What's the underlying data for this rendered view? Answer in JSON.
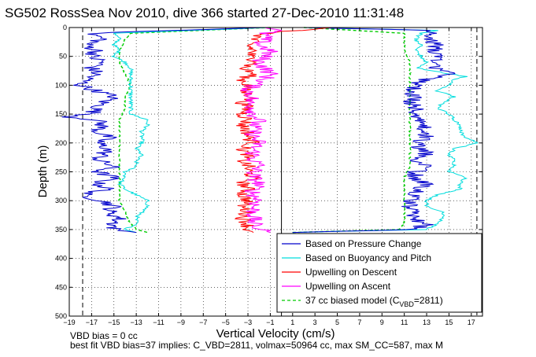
{
  "chart_data": {
    "type": "line",
    "title": "SG502 RossSea Nov 2010, dive 366 started 27-Dec-2010 11:31:48",
    "xlabel": "Vertical Velocity (cm/s)",
    "ylabel": "Depth (m)",
    "xlim": [
      -19,
      18
    ],
    "ylim": [
      0,
      500
    ],
    "y_reversed": true,
    "grid": true,
    "xticks": [
      -19,
      -17,
      -15,
      -13,
      -11,
      -9,
      -7,
      -5,
      -3,
      -1,
      1,
      3,
      5,
      7,
      9,
      11,
      13,
      15,
      17
    ],
    "yticks": [
      0,
      50,
      100,
      150,
      200,
      250,
      300,
      350,
      400,
      450,
      500
    ],
    "vertical_lines": [
      {
        "x": -17.8,
        "style": "dashed",
        "color": "#000000"
      },
      {
        "x": 17.5,
        "style": "dashed",
        "color": "#000000"
      },
      {
        "x": 0,
        "style": "solid",
        "color": "#000000"
      }
    ],
    "legend_position": "lower-right",
    "series": [
      {
        "name": "Based on Pressure Change",
        "color": "#0000cc",
        "style": "solid",
        "descent": {
          "depth": [
            0,
            10,
            20,
            30,
            40,
            50,
            60,
            70,
            80,
            90,
            100,
            110,
            120,
            130,
            140,
            150,
            155,
            160,
            170,
            180,
            190,
            200,
            210,
            220,
            230,
            240,
            250,
            260,
            270,
            280,
            290,
            300,
            310,
            320,
            330,
            340,
            350,
            355
          ],
          "velocity": [
            -1.5,
            -17,
            -16,
            -17.5,
            -16.5,
            -17,
            -16,
            -17,
            -16.5,
            -17.5,
            -18,
            -16.5,
            -15,
            -16,
            -16.5,
            -17,
            -19,
            -16.5,
            -16,
            -16.5,
            -15.5,
            -16.5,
            -15.5,
            -16,
            -16.5,
            -15,
            -16.5,
            -15,
            -16.5,
            -15.5,
            -18,
            -16,
            -15,
            -15.5,
            -14.5,
            -15,
            -15,
            -13
          ]
        },
        "ascent": {
          "depth": [
            355,
            350,
            340,
            330,
            320,
            310,
            300,
            290,
            280,
            270,
            260,
            250,
            240,
            230,
            220,
            210,
            200,
            190,
            180,
            170,
            160,
            150,
            140,
            130,
            120,
            110,
            100,
            90,
            80,
            70,
            60,
            50,
            40,
            30,
            20,
            10,
            5,
            0
          ],
          "velocity": [
            1,
            12,
            13,
            11.5,
            12,
            11.5,
            11.5,
            12,
            12.5,
            13,
            12,
            12,
            13.5,
            12,
            13,
            12.5,
            12,
            13,
            12,
            13,
            12.5,
            12,
            12,
            11.5,
            12,
            11.5,
            12,
            13,
            15,
            14,
            13.5,
            14,
            13.5,
            14,
            13,
            14,
            13,
            2
          ]
        }
      },
      {
        "name": "Based on Buoyancy and Pitch",
        "color": "#00dddd",
        "style": "solid",
        "descent": {
          "depth": [
            0,
            10,
            20,
            30,
            40,
            50,
            60,
            70,
            80,
            90,
            100,
            110,
            120,
            130,
            140,
            150,
            160,
            170,
            180,
            190,
            200,
            210,
            220,
            230,
            240,
            250,
            260,
            270,
            280,
            290,
            300,
            310,
            320,
            330,
            340,
            350,
            355
          ],
          "velocity": [
            -1,
            -15,
            -14.5,
            -15,
            -14.5,
            -15,
            -14,
            -13.5,
            -13.5,
            -13.5,
            -13.5,
            -13.5,
            -13.5,
            -13.5,
            -13.5,
            -13.5,
            -12,
            -12,
            -12.5,
            -12.5,
            -12.5,
            -13,
            -12.5,
            -13,
            -13,
            -14,
            -14,
            -14.5,
            -14,
            -13,
            -12,
            -12,
            -12.5,
            -13,
            -13,
            -14,
            -13
          ]
        },
        "ascent": {
          "depth": [
            355,
            350,
            340,
            330,
            320,
            310,
            300,
            290,
            280,
            270,
            260,
            250,
            240,
            230,
            220,
            210,
            200,
            190,
            180,
            170,
            160,
            150,
            140,
            130,
            120,
            110,
            100,
            90,
            85,
            80,
            70,
            60,
            50,
            40,
            30,
            20,
            10,
            5,
            0
          ],
          "velocity": [
            1,
            13,
            14,
            14.5,
            14.5,
            13,
            13,
            14,
            16,
            16,
            16.5,
            15,
            15.5,
            15.5,
            15,
            15.5,
            17.5,
            16.5,
            16,
            16,
            15.5,
            15,
            14,
            14.5,
            15.5,
            14,
            15,
            15.5,
            16.5,
            15,
            12,
            13,
            12.5,
            12,
            12.5,
            12,
            12.5,
            14,
            2
          ]
        }
      },
      {
        "name": "Upwelling on Descent",
        "color": "#ff0000",
        "style": "solid",
        "depth": [
          0,
          5,
          10,
          20,
          30,
          40,
          50,
          60,
          70,
          80,
          90,
          100,
          110,
          120,
          130,
          140,
          150,
          160,
          170,
          180,
          190,
          200,
          210,
          220,
          230,
          240,
          250,
          260,
          270,
          280,
          290,
          300,
          310,
          320,
          330,
          340,
          350,
          355
        ],
        "velocity": [
          4.5,
          1.5,
          -1.5,
          -2.5,
          -3,
          -2.5,
          -3,
          -2,
          -3.5,
          -2.5,
          -3.5,
          -3,
          -3.5,
          -2.5,
          -3.5,
          -3,
          -3.5,
          -3,
          -3.5,
          -3,
          -3,
          -2.5,
          -3.5,
          -3,
          -3.5,
          -3,
          -3,
          -2.5,
          -3.5,
          -3,
          -3.5,
          -3,
          -3.5,
          -3,
          -3.5,
          -3,
          -3,
          -2.5
        ]
      },
      {
        "name": "Upwelling on Ascent",
        "color": "#ff00ff",
        "style": "solid",
        "depth": [
          0,
          5,
          10,
          20,
          30,
          40,
          50,
          60,
          70,
          80,
          90,
          100,
          110,
          120,
          130,
          140,
          150,
          160,
          170,
          180,
          190,
          200,
          210,
          220,
          230,
          240,
          250,
          260,
          270,
          280,
          290,
          300,
          310,
          320,
          330,
          340,
          350,
          355
        ],
        "velocity": [
          -1.5,
          -0.5,
          -1.5,
          -1.5,
          -2,
          -1,
          -1.5,
          -2,
          -1.5,
          -1,
          -1.5,
          -2.5,
          -3,
          -2.5,
          -3,
          -2.5,
          -2.5,
          -2,
          -2.5,
          -2.5,
          -2.5,
          -2,
          -2.5,
          -2.5,
          -2.5,
          -2,
          -2.5,
          -2.5,
          -2,
          -2.5,
          -2.5,
          -2,
          -2.5,
          -2.5,
          -2.5,
          -2.5,
          -2,
          -1
        ]
      },
      {
        "name": "37 cc biased model (C",
        "name_sub": "VBD",
        "name_suffix": "=2811)",
        "color": "#00cc00",
        "style": "dashed",
        "descent": {
          "depth": [
            0,
            10,
            20,
            40,
            60,
            80,
            100,
            120,
            140,
            160,
            180,
            200,
            220,
            240,
            260,
            280,
            300,
            320,
            340,
            350,
            355
          ],
          "velocity": [
            -1,
            -13.5,
            -14,
            -14.5,
            -14.5,
            -14,
            -13.5,
            -14,
            -14,
            -14.5,
            -14.5,
            -14.5,
            -14.5,
            -14.5,
            -14.5,
            -14.5,
            -14.5,
            -14,
            -13.5,
            -13,
            -12
          ]
        },
        "ascent": {
          "depth": [
            355,
            350,
            340,
            320,
            300,
            280,
            260,
            240,
            220,
            200,
            180,
            160,
            140,
            120,
            100,
            80,
            60,
            40,
            20,
            10,
            0
          ],
          "velocity": [
            1,
            10.5,
            11,
            11,
            11,
            11,
            11,
            11.5,
            11.5,
            11.5,
            11.5,
            11.5,
            11.5,
            11.5,
            11.5,
            11.5,
            11.5,
            11,
            11,
            11,
            2
          ]
        }
      }
    ],
    "annotations": [
      "VBD bias = 0 cc",
      "best fit VBD bias=37 implies: C_VBD=2811, volmax=50964 cc, max SM_CC=587, max M"
    ]
  }
}
